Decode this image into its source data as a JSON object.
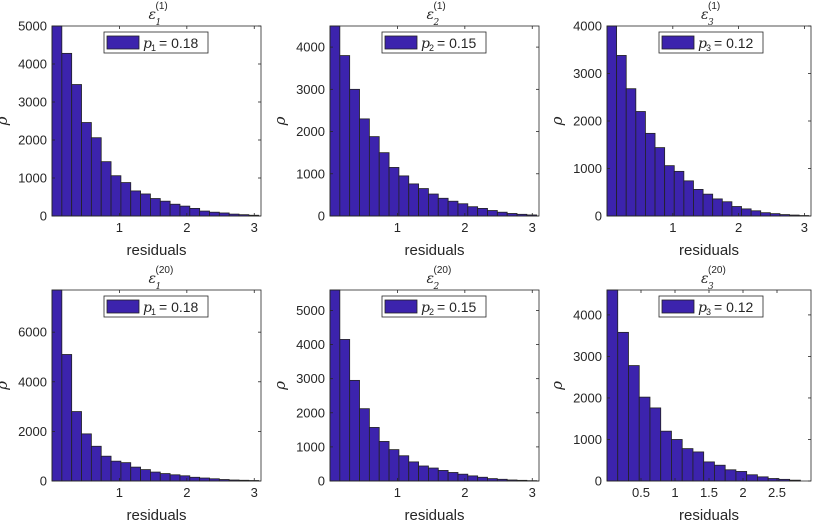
{
  "chart_data": [
    {
      "type": "bar",
      "title": "ε₁⁽¹⁾",
      "title_base": "ε",
      "title_sub": "1",
      "title_sup": "(1)",
      "xlabel": "residuals",
      "ylabel": "ρ",
      "xlim": [
        0,
        3.1
      ],
      "ylim": [
        0,
        5000
      ],
      "xticks": [
        1,
        2,
        3
      ],
      "yticks": [
        0,
        1000,
        2000,
        3000,
        4000,
        5000
      ],
      "bin_width": 0.146,
      "values": [
        5000,
        4280,
        3460,
        2460,
        2060,
        1430,
        1060,
        880,
        660,
        580,
        460,
        390,
        310,
        260,
        200,
        130,
        100,
        80,
        50,
        35,
        20
      ],
      "legend": {
        "var": "p",
        "sub": "1",
        "value": "= 0.18",
        "label": "p₁ = 0.18"
      },
      "bar_color": "#3c23ad"
    },
    {
      "type": "bar",
      "title": "ε₂⁽¹⁾",
      "title_base": "ε",
      "title_sub": "2",
      "title_sup": "(1)",
      "xlabel": "residuals",
      "ylabel": "ρ",
      "xlim": [
        0,
        3.1
      ],
      "ylim": [
        0,
        4500
      ],
      "xticks": [
        1,
        2,
        3
      ],
      "yticks": [
        0,
        1000,
        2000,
        3000,
        4000
      ],
      "bin_width": 0.146,
      "values": [
        4500,
        3800,
        3000,
        2300,
        1880,
        1500,
        1150,
        950,
        760,
        650,
        520,
        420,
        350,
        290,
        220,
        180,
        130,
        90,
        60,
        40,
        25
      ],
      "legend": {
        "var": "p",
        "sub": "2",
        "value": "= 0.15",
        "label": "p₂ = 0.15"
      },
      "bar_color": "#3c23ad"
    },
    {
      "type": "bar",
      "title": "ε₃⁽¹⁾",
      "title_base": "ε",
      "title_sub": "3",
      "title_sup": "(1)",
      "xlabel": "residuals",
      "ylabel": "ρ",
      "xlim": [
        0,
        3.1
      ],
      "ylim": [
        0,
        4000
      ],
      "xticks": [
        1,
        2,
        3
      ],
      "yticks": [
        0,
        1000,
        2000,
        3000,
        4000
      ],
      "bin_width": 0.146,
      "values": [
        4000,
        3380,
        2680,
        2200,
        1740,
        1440,
        1060,
        940,
        740,
        560,
        460,
        360,
        300,
        200,
        150,
        110,
        70,
        50,
        30,
        20,
        10
      ],
      "legend": {
        "var": "p",
        "sub": "3",
        "value": "= 0.12",
        "label": "p₃ = 0.12"
      },
      "bar_color": "#3c23ad"
    },
    {
      "type": "bar",
      "title": "ε₁⁽²⁰⁾",
      "title_base": "ε",
      "title_sub": "1",
      "title_sup": "(20)",
      "xlabel": "residuals",
      "ylabel": "ρ",
      "xlim": [
        0,
        3.1
      ],
      "ylim": [
        0,
        7700
      ],
      "xticks": [
        1,
        2,
        3
      ],
      "yticks": [
        0,
        2000,
        4000,
        6000
      ],
      "bin_width": 0.146,
      "values": [
        7700,
        5100,
        2800,
        1900,
        1400,
        1000,
        800,
        740,
        560,
        460,
        360,
        300,
        250,
        210,
        150,
        120,
        90,
        60,
        40,
        30,
        20
      ],
      "legend": {
        "var": "p",
        "sub": "1",
        "value": "= 0.18",
        "label": "p₁ = 0.18"
      },
      "bar_color": "#3c23ad"
    },
    {
      "type": "bar",
      "title": "ε₂⁽²⁰⁾",
      "title_base": "ε",
      "title_sub": "2",
      "title_sup": "(20)",
      "xlabel": "residuals",
      "ylabel": "ρ",
      "xlim": [
        0,
        3.1
      ],
      "ylim": [
        0,
        5600
      ],
      "xticks": [
        1,
        2,
        3
      ],
      "yticks": [
        0,
        1000,
        2000,
        3000,
        4000,
        5000
      ],
      "bin_width": 0.146,
      "values": [
        5600,
        4150,
        2950,
        2120,
        1570,
        1160,
        920,
        740,
        560,
        440,
        380,
        310,
        250,
        200,
        150,
        110,
        70,
        50,
        30,
        20,
        10
      ],
      "legend": {
        "var": "p",
        "sub": "2",
        "value": "= 0.15",
        "label": "p₂ = 0.15"
      },
      "bar_color": "#3c23ad"
    },
    {
      "type": "bar",
      "title": "ε₃⁽²⁰⁾",
      "title_base": "ε",
      "title_sub": "3",
      "title_sup": "(20)",
      "xlabel": "residuals",
      "ylabel": "ρ",
      "xlim": [
        0,
        3.0
      ],
      "ylim": [
        0,
        4600
      ],
      "xticks": [
        0.5,
        1,
        1.5,
        2,
        2.5
      ],
      "yticks": [
        0,
        1000,
        2000,
        3000,
        4000
      ],
      "bin_width": 0.158,
      "values": [
        4600,
        3580,
        2780,
        2020,
        1760,
        1200,
        1000,
        780,
        700,
        460,
        380,
        270,
        230,
        150,
        100,
        60,
        40,
        20
      ],
      "legend": {
        "var": "p",
        "sub": "3",
        "value": "= 0.12",
        "label": "p₃ = 0.12"
      },
      "bar_color": "#3c23ad"
    }
  ]
}
